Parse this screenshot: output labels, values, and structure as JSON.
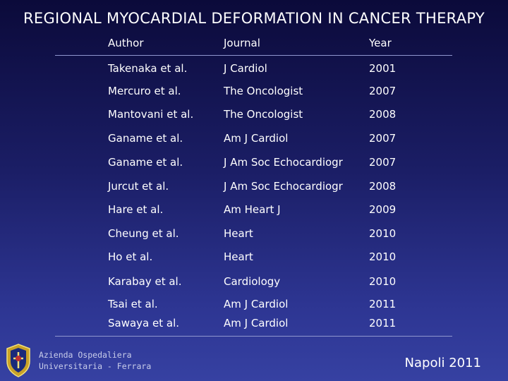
{
  "slide": {
    "title": "REGIONAL MYOCARDIAL DEFORMATION IN CANCER THERAPY"
  },
  "table": {
    "headers": [
      "Author",
      "Journal",
      "Year"
    ],
    "rows": [
      {
        "author": "Takenaka et al.",
        "journal": "J Cardiol",
        "year": "2001"
      },
      {
        "author": "Mercuro et al.",
        "journal": "The Oncologist",
        "year": "2007"
      },
      {
        "author": "Mantovani et al.",
        "journal": "The Oncologist",
        "year": "2008"
      },
      {
        "author": "Ganame et al.",
        "journal": "Am J Cardiol",
        "year": "2007"
      },
      {
        "author": "Ganame et al.",
        "journal": "J Am Soc Echocardiogr",
        "year": "2007"
      },
      {
        "author": "Jurcut et al.",
        "journal": "J Am Soc Echocardiogr",
        "year": "2008"
      },
      {
        "author": "Hare et al.",
        "journal": "Am Heart J",
        "year": "2009"
      },
      {
        "author": "Cheung et al.",
        "journal": "Heart",
        "year": "2010"
      },
      {
        "author": "Ho et al.",
        "journal": "Heart",
        "year": "2010"
      },
      {
        "author": "Karabay et al.",
        "journal": "Cardiology",
        "year": "2010"
      },
      {
        "author": "Tsai et al.",
        "journal": "Am J Cardiol",
        "year": "2011"
      },
      {
        "author": "Sawaya et al.",
        "journal": "Am J Cardiol",
        "year": "2011"
      }
    ]
  },
  "footer": {
    "org_line1": "Azienda Ospedaliera",
    "org_line2": "Universitaria - Ferrara",
    "city_year": "Napoli 2011",
    "logo_icon": "hospital-crest-icon"
  },
  "colors": {
    "background_top": "#0b0a3a",
    "background_bottom": "#3641a2",
    "text": "#ffffff",
    "rule": "#8f97cf"
  }
}
